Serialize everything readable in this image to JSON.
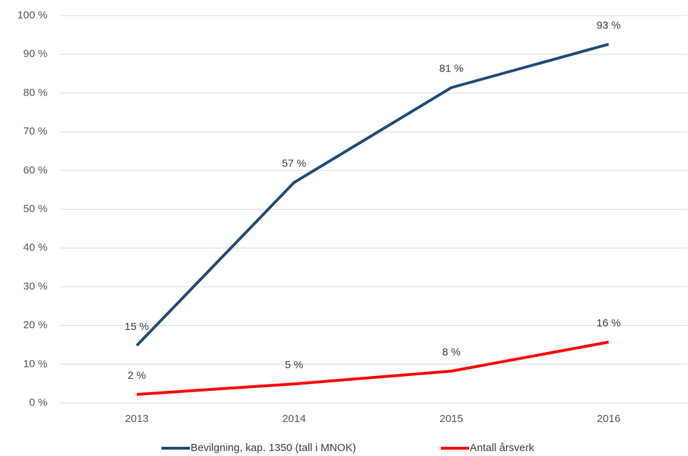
{
  "chart_data": {
    "type": "line",
    "categories": [
      "2013",
      "2014",
      "2015",
      "2016"
    ],
    "series": [
      {
        "name": "Bevilgning, kap. 1350 (tall i MNOK)",
        "color": "#1f4e79",
        "values": [
          14.8,
          56.9,
          81.4,
          92.6
        ],
        "value_labels": [
          "15 %",
          "57 %",
          "81 %",
          "93 %"
        ]
      },
      {
        "name": "Antall årsverk",
        "color": "#ff0000",
        "values": [
          2.2,
          4.9,
          8.2,
          15.7
        ],
        "value_labels": [
          "2 %",
          "5 %",
          "8 %",
          "16 %"
        ]
      }
    ],
    "ylim": [
      0,
      100
    ],
    "yticks": [
      {
        "value": 0,
        "label": "0 %"
      },
      {
        "value": 10,
        "label": "10 %"
      },
      {
        "value": 20,
        "label": "20 %"
      },
      {
        "value": 30,
        "label": "30 %"
      },
      {
        "value": 40,
        "label": "40 %"
      },
      {
        "value": 50,
        "label": "50 %"
      },
      {
        "value": 60,
        "label": "60 %"
      },
      {
        "value": 70,
        "label": "70 %"
      },
      {
        "value": 80,
        "label": "80 %"
      },
      {
        "value": 90,
        "label": "90 %"
      },
      {
        "value": 100,
        "label": "100 %"
      }
    ],
    "grid": true,
    "legend": "bottom"
  }
}
